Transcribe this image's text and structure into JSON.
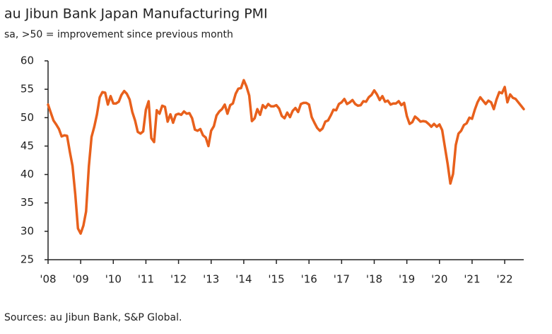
{
  "chart_data": {
    "type": "line",
    "title": "au Jibun Bank Japan Manufacturing PMI",
    "subtitle": "sa, >50 = improvement since previous month",
    "source": "Sources: au Jibun Bank, S&P Global.",
    "categories": [
      "'08",
      null,
      null,
      null,
      null,
      null,
      null,
      null,
      null,
      null,
      null,
      null,
      "'09",
      null,
      null,
      null,
      null,
      null,
      null,
      null,
      null,
      null,
      null,
      null,
      "'10",
      null,
      null,
      null,
      null,
      null,
      null,
      null,
      null,
      null,
      null,
      null,
      "'11",
      null,
      null,
      null,
      null,
      null,
      null,
      null,
      null,
      null,
      null,
      null,
      "'12",
      null,
      null,
      null,
      null,
      null,
      null,
      null,
      null,
      null,
      null,
      null,
      "'13",
      null,
      null,
      null,
      null,
      null,
      null,
      null,
      null,
      null,
      null,
      null,
      "'14",
      null,
      null,
      null,
      null,
      null,
      null,
      null,
      null,
      null,
      null,
      null,
      "'15",
      null,
      null,
      null,
      null,
      null,
      null,
      null,
      null,
      null,
      null,
      null,
      "'16",
      null,
      null,
      null,
      null,
      null,
      null,
      null,
      null,
      null,
      null,
      null,
      "'17",
      null,
      null,
      null,
      null,
      null,
      null,
      null,
      null,
      null,
      null,
      null,
      "'18",
      null,
      null,
      null,
      null,
      null,
      null,
      null,
      null,
      null,
      null,
      null,
      "'19",
      null,
      null,
      null,
      null,
      null,
      null,
      null,
      null,
      null,
      null,
      null,
      "'20",
      null,
      null,
      null,
      null,
      null,
      null,
      null,
      null,
      null,
      null,
      null,
      "'21",
      null,
      null,
      null,
      null,
      null,
      null,
      null,
      null,
      null,
      null,
      null,
      "'22",
      null,
      null,
      null,
      null,
      null,
      null,
      null
    ],
    "values": [
      52.3,
      50.9,
      49.5,
      48.8,
      48.0,
      46.7,
      46.9,
      46.8,
      44.0,
      41.5,
      36.5,
      30.5,
      29.6,
      31.0,
      33.5,
      41.4,
      46.6,
      48.4,
      50.6,
      53.6,
      54.5,
      54.4,
      52.3,
      53.8,
      52.5,
      52.5,
      52.8,
      54.0,
      54.7,
      54.2,
      53.2,
      51.0,
      49.5,
      47.5,
      47.2,
      47.6,
      51.4,
      52.9,
      46.4,
      45.7,
      51.3,
      50.7,
      52.1,
      51.9,
      49.3,
      50.6,
      49.1,
      50.5,
      50.7,
      50.5,
      51.1,
      50.7,
      50.8,
      49.9,
      47.9,
      47.7,
      48.0,
      46.9,
      46.5,
      45.0,
      47.7,
      48.5,
      50.4,
      51.1,
      51.5,
      52.3,
      50.7,
      52.2,
      52.5,
      54.2,
      55.1,
      55.2,
      56.6,
      55.5,
      53.9,
      49.4,
      49.9,
      51.5,
      50.5,
      52.2,
      51.7,
      52.4,
      52.0,
      52.0,
      52.2,
      51.6,
      50.3,
      49.9,
      50.9,
      50.1,
      51.2,
      51.7,
      51.0,
      52.4,
      52.6,
      52.6,
      52.3,
      50.1,
      49.1,
      48.2,
      47.7,
      48.1,
      49.3,
      49.5,
      50.4,
      51.4,
      51.3,
      52.4,
      52.7,
      53.3,
      52.4,
      52.7,
      53.1,
      52.4,
      52.1,
      52.2,
      52.9,
      52.8,
      53.6,
      54.0,
      54.8,
      54.1,
      53.1,
      53.8,
      52.8,
      53.0,
      52.3,
      52.5,
      52.5,
      52.9,
      52.2,
      52.6,
      50.3,
      48.9,
      49.2,
      50.2,
      49.8,
      49.3,
      49.4,
      49.3,
      48.9,
      48.4,
      48.9,
      48.4,
      48.8,
      47.8,
      44.8,
      41.9,
      38.4,
      40.1,
      45.2,
      47.2,
      47.7,
      48.7,
      49.0,
      50.0,
      49.8,
      51.4,
      52.7,
      53.6,
      53.0,
      52.4,
      53.0,
      52.7,
      51.5,
      53.2,
      54.5,
      54.3,
      55.4,
      52.7,
      54.1,
      53.5,
      53.3,
      52.7,
      52.1,
      51.5
    ],
    "color": "#e8601c",
    "ylim": [
      25,
      60
    ],
    "yticks": [
      25,
      30,
      35,
      40,
      45,
      50,
      55,
      60
    ],
    "grid": false
  }
}
